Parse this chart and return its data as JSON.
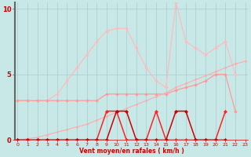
{
  "x": [
    0,
    1,
    2,
    3,
    4,
    5,
    6,
    7,
    8,
    9,
    10,
    11,
    12,
    13,
    14,
    15,
    16,
    17,
    18,
    19,
    20,
    21,
    22,
    23
  ],
  "bg_color": "#c8e8e8",
  "grid_color": "#a8cece",
  "xlabel": "Vent moyen/en rafales ( km/h )",
  "yticks": [
    0,
    5,
    10
  ],
  "xticks": [
    0,
    1,
    2,
    3,
    4,
    5,
    6,
    7,
    8,
    9,
    10,
    11,
    12,
    13,
    14,
    15,
    16,
    17,
    18,
    19,
    20,
    21,
    22,
    23
  ],
  "ylim": [
    0,
    10.5
  ],
  "xlim": [
    -0.3,
    23.3
  ],
  "lines": [
    {
      "y": [
        3.0,
        3.0,
        3.0,
        3.0,
        3.5,
        4.5,
        5.5,
        6.5,
        7.5,
        8.3,
        8.5,
        8.5,
        7.0,
        5.5,
        4.5,
        4.0,
        10.5,
        7.5,
        7.0,
        6.5,
        7.0,
        7.5,
        5.0,
        null
      ],
      "color": "#ffbbbb",
      "lw": 0.9,
      "ms": 2.0
    },
    {
      "y": [
        3.0,
        3.0,
        3.0,
        3.0,
        3.0,
        3.0,
        3.0,
        3.0,
        3.0,
        3.5,
        3.5,
        3.5,
        3.5,
        3.5,
        3.5,
        3.5,
        3.8,
        4.0,
        4.2,
        4.5,
        5.0,
        5.0,
        2.2,
        null
      ],
      "color": "#ff9999",
      "lw": 0.9,
      "ms": 2.0
    },
    {
      "y": [
        0.0,
        0.1,
        0.2,
        0.4,
        0.6,
        0.8,
        1.0,
        1.2,
        1.5,
        1.8,
        2.1,
        2.4,
        2.7,
        3.0,
        3.3,
        3.6,
        4.0,
        4.3,
        4.6,
        4.9,
        5.2,
        5.5,
        5.8,
        6.0
      ],
      "color": "#ffaaaa",
      "lw": 0.8,
      "ms": 1.5
    },
    {
      "y": [
        0.0,
        0.0,
        0.0,
        0.0,
        0.0,
        0.0,
        0.0,
        0.0,
        0.0,
        2.2,
        2.2,
        0.0,
        0.0,
        0.0,
        2.2,
        0.0,
        0.0,
        0.0,
        0.0,
        0.0,
        0.0,
        2.2,
        null,
        null
      ],
      "color": "#ff2222",
      "lw": 1.1,
      "ms": 2.2
    },
    {
      "y": [
        0.0,
        0.0,
        0.0,
        0.0,
        0.0,
        0.0,
        0.0,
        0.0,
        0.0,
        0.0,
        2.2,
        2.2,
        0.0,
        0.0,
        0.0,
        0.0,
        2.2,
        2.2,
        0.0,
        0.0,
        0.0,
        0.0,
        null,
        null
      ],
      "color": "#cc0000",
      "lw": 1.1,
      "ms": 2.2
    }
  ]
}
